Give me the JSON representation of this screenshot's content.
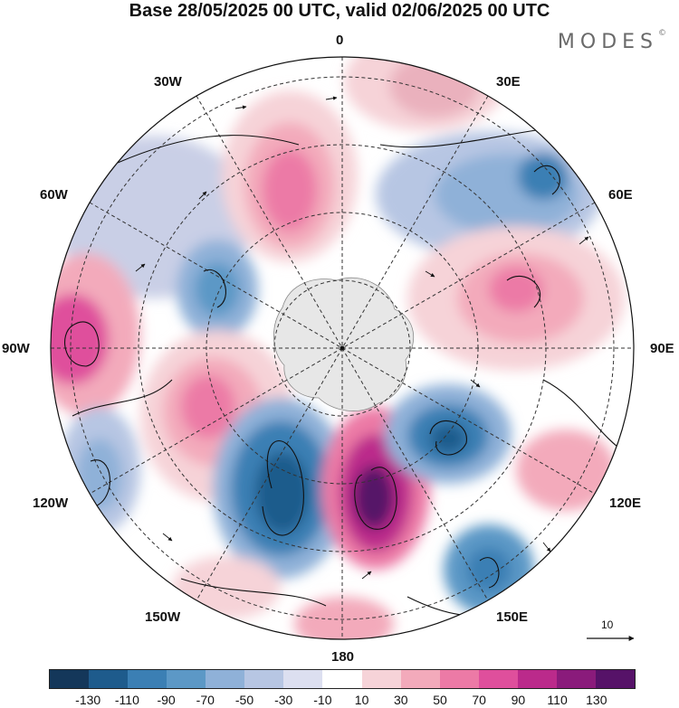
{
  "title": "Base 28/05/2025 00 UTC, valid 02/06/2025 00 UTC",
  "brand": {
    "name": "MODES",
    "mark": "©"
  },
  "longitude_labels": {
    "lon_0": "0",
    "lon_30e": "30E",
    "lon_60e": "60E",
    "lon_90e": "90E",
    "lon_120e": "120E",
    "lon_150e": "150E",
    "lon_180": "180",
    "lon_150w": "150W",
    "lon_120w": "120W",
    "lon_90w": "90W",
    "lon_60w": "60W",
    "lon_30w": "30W"
  },
  "vector_scale": {
    "value": "10"
  },
  "colorbar": {
    "colors": [
      "#14375a",
      "#1e5b8c",
      "#3b7fb4",
      "#5c98c6",
      "#8fb1d8",
      "#b7c6e3",
      "#dcdff0",
      "#ffffff",
      "#f6d3d8",
      "#f3aabb",
      "#ec7aa6",
      "#df4f9c",
      "#bb2a8b",
      "#8a1b7b",
      "#561268"
    ],
    "tick_labels": [
      "-130",
      "-110",
      "-90",
      "-70",
      "-50",
      "-30",
      "-10",
      "10",
      "30",
      "50",
      "70",
      "90",
      "110",
      "130"
    ]
  }
}
